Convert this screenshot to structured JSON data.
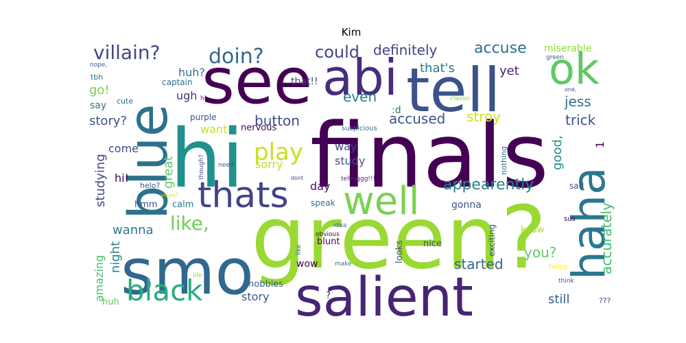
{
  "chart_data": {
    "type": "wordcloud",
    "title": "Kim",
    "background": "#ffffff",
    "colormap": "viridis",
    "words": [
      {
        "text": "finals",
        "color": "#440154"
      },
      {
        "text": "green?",
        "color": "#9ad932"
      },
      {
        "text": "hi",
        "color": "#21918c"
      },
      {
        "text": "see",
        "color": "#440154"
      },
      {
        "text": "tell",
        "color": "#3b528b"
      },
      {
        "text": "smo",
        "color": "#31688e"
      },
      {
        "text": "salient",
        "color": "#482475"
      },
      {
        "text": "blue",
        "color": "#2c728e"
      },
      {
        "text": "abi",
        "color": "#472d7b"
      },
      {
        "text": "ok",
        "color": "#5ec962"
      },
      {
        "text": "haha",
        "color": "#2a788e"
      },
      {
        "text": "well",
        "color": "#7ad151"
      },
      {
        "text": "thats",
        "color": "#414487"
      },
      {
        "text": "black",
        "color": "#27ad81"
      },
      {
        "text": "play",
        "color": "#c8e020"
      },
      {
        "text": "villain?",
        "color": "#3e4a89"
      },
      {
        "text": "doin?",
        "color": "#31688e"
      },
      {
        "text": "like,",
        "color": "#6ece58"
      },
      {
        "text": "appearently",
        "color": "#26828e"
      },
      {
        "text": "could",
        "color": "#414487"
      },
      {
        "text": "definitely",
        "color": "#414487"
      },
      {
        "text": "accuse",
        "color": "#2d708e"
      },
      {
        "text": "accused",
        "color": "#3b528b"
      },
      {
        "text": "button",
        "color": "#3e4989"
      },
      {
        "text": "story",
        "color": "#2e6e8e"
      },
      {
        "text": "even",
        "color": "#287c8e"
      },
      {
        "text": "jess",
        "color": "#2c738e"
      },
      {
        "text": "trick",
        "color": "#3b528b"
      },
      {
        "text": "accurately",
        "color": "#3fbc73"
      },
      {
        "text": "started",
        "color": "#33638d"
      },
      {
        "text": "night",
        "color": "#25848e"
      },
      {
        "text": "amazing",
        "color": "#4ac16d"
      },
      {
        "text": "studying",
        "color": "#404688"
      },
      {
        "text": "great",
        "color": "#5ec962"
      },
      {
        "text": "story?",
        "color": "#3b528b"
      },
      {
        "text": "wanna",
        "color": "#2a788e"
      },
      {
        "text": "stroy",
        "color": "#d0e11c"
      },
      {
        "text": "good,",
        "color": "#23898e"
      },
      {
        "text": "still",
        "color": "#355f8d"
      },
      {
        "text": "you?",
        "color": "#5ec962"
      },
      {
        "text": "that's",
        "color": "#2a788e"
      },
      {
        "text": "yet",
        "color": "#482173"
      },
      {
        "text": "huh?",
        "color": "#2c718e"
      },
      {
        "text": "go!",
        "color": "#7ad151"
      },
      {
        "text": "miserable",
        "color": "#95d840"
      },
      {
        "text": "ugh",
        "color": "#472c7a"
      },
      {
        "text": "want",
        "color": "#c8e020"
      },
      {
        "text": "come",
        "color": "#3e4a89"
      },
      {
        "text": "way",
        "color": "#3e4989"
      },
      {
        "text": "study",
        "color": "#3b528b"
      },
      {
        "text": "day",
        "color": "#471063"
      },
      {
        "text": "sorry",
        "color": "#bddf26"
      },
      {
        "text": "hi!",
        "color": "#440154"
      },
      {
        "text": "gonna",
        "color": "#3b528b"
      },
      {
        "text": "say",
        "color": "#2c728e"
      },
      {
        "text": "that!!",
        "color": "#3e4989"
      },
      {
        "text": "1",
        "color": "#440154"
      },
      {
        "text": "nervous",
        "color": "#440154"
      },
      {
        "text": "purple",
        "color": "#3b528b"
      },
      {
        "text": ":d",
        "color": "#2c728e"
      },
      {
        "text": "hobbies",
        "color": "#355f8d"
      },
      {
        "text": "huh",
        "color": "#5ec962"
      },
      {
        "text": "story",
        "color": "#38598c"
      },
      {
        "text": "nice",
        "color": "#3b528b"
      },
      {
        "text": "looks",
        "color": "#3b528b"
      },
      {
        "text": "exciting",
        "color": "#39558c"
      },
      {
        "text": "blunt",
        "color": "#440154"
      },
      {
        "text": "wow",
        "color": "#440154"
      },
      {
        "text": "calm",
        "color": "#2a788e"
      },
      {
        "text": "hmm",
        "color": "#3b528b"
      },
      {
        "text": "speak",
        "color": "#2c728e"
      },
      {
        "text": "know",
        "color": "#a2da37"
      },
      {
        "text": "sad",
        "color": "#3b528b"
      },
      {
        "text": "sus",
        "color": "#440154"
      },
      {
        "text": "?",
        "color": "#482475"
      },
      {
        "text": "???",
        "color": "#3b528b"
      },
      {
        "text": "tbh",
        "color": "#2a788e"
      },
      {
        "text": "cute",
        "color": "#2c728e"
      },
      {
        "text": "captain",
        "color": "#2c728e"
      },
      {
        "text": "nope,",
        "color": "#3b528b"
      },
      {
        "text": "hi",
        "color": "#482475"
      },
      {
        "text": "green",
        "color": "#3b528b"
      },
      {
        "text": "one,",
        "color": "#3b528b"
      },
      {
        "text": "classic",
        "color": "#7ad151"
      },
      {
        "text": "suspicious",
        "color": "#2c728e"
      },
      {
        "text": "nothing",
        "color": "#2c728e"
      },
      {
        "text": "though?",
        "color": "#3e4989"
      },
      {
        "text": "need",
        "color": "#3b528b"
      },
      {
        "text": "dont",
        "color": "#3e4989"
      },
      {
        "text": "tellinggg!!!",
        "color": "#482475"
      },
      {
        "text": "helo?",
        "color": "#3b528b"
      },
      {
        "text": "yours?",
        "color": "#c8e020"
      },
      {
        "text": "idea",
        "color": "#2c728e"
      },
      {
        "text": "obvious",
        "color": "#440154"
      },
      {
        "text": "like",
        "color": "#2c728e"
      },
      {
        "text": "make",
        "color": "#2c728e"
      },
      {
        "text": "life",
        "color": "#a2da37"
      },
      {
        "text": "heloo",
        "color": "#fde725"
      },
      {
        "text": "think",
        "color": "#3b528b"
      }
    ]
  }
}
